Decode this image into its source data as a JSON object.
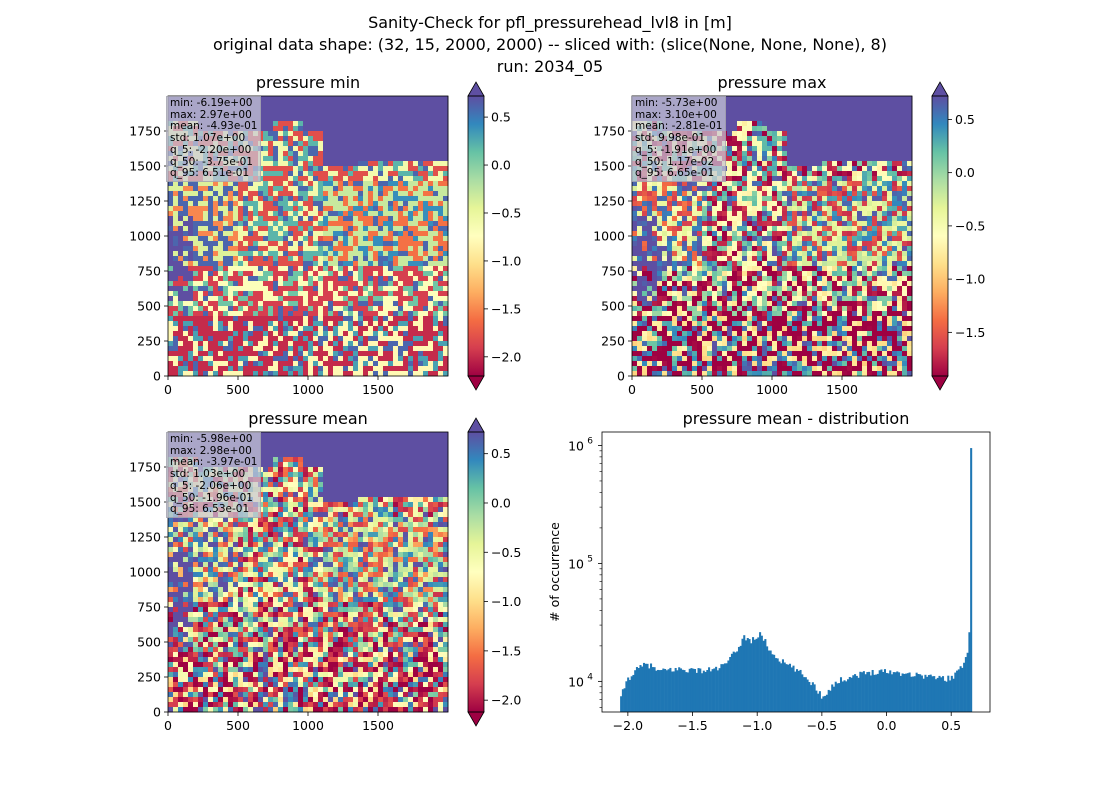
{
  "figure": {
    "title_lines": [
      "Sanity-Check for pfl_pressurehead_lvl8 in [m]",
      "original data shape: (32, 15, 2000, 2000) -- sliced with: (slice(None, None, None), 8)",
      "run: 2034_05"
    ]
  },
  "colors": {
    "colormap": "Spectral",
    "colormap_stops": [
      "#9e0142",
      "#d53e4f",
      "#f46d43",
      "#fdae61",
      "#fee08b",
      "#ffffbf",
      "#e6f598",
      "#abdda4",
      "#66c2a5",
      "#3288bd",
      "#5e4fa2"
    ],
    "histogram_bar": "#1f77b4",
    "stats_box": "#c8c8d7"
  },
  "chart_data": [
    {
      "type": "heatmap",
      "title": "pressure min",
      "xlim": [
        0,
        2000
      ],
      "ylim": [
        0,
        2000
      ],
      "x_ticks": [
        0,
        500,
        1000,
        1500
      ],
      "y_ticks": [
        0,
        250,
        500,
        750,
        1000,
        1250,
        1500,
        1750
      ],
      "colorbar": {
        "vmin": -2.2,
        "vmax": 0.72,
        "ticks": [
          0.5,
          0.0,
          -0.5,
          -1.0,
          -1.5,
          -2.0
        ],
        "tick_labels": [
          "0.5",
          "0.0",
          "−0.5",
          "−1.0",
          "−1.5",
          "−2.0"
        ],
        "extend": "both"
      },
      "stats": [
        "min: -6.19e+00",
        "max: 2.97e+00",
        "mean: -4.93e-01",
        "std: 1.07e+00",
        "q_5: -2.20e+00",
        "q_50: -3.75e-01",
        "q_95: 6.51e-01"
      ]
    },
    {
      "type": "heatmap",
      "title": "pressure max",
      "xlim": [
        0,
        2000
      ],
      "ylim": [
        0,
        2000
      ],
      "x_ticks": [
        0,
        500,
        1000,
        1500
      ],
      "y_ticks": [
        0,
        250,
        500,
        750,
        1000,
        1250,
        1500,
        1750
      ],
      "colorbar": {
        "vmin": -1.91,
        "vmax": 0.72,
        "ticks": [
          0.5,
          0.0,
          -0.5,
          -1.0,
          -1.5
        ],
        "tick_labels": [
          "0.5",
          "0.0",
          "−0.5",
          "−1.0",
          "−1.5"
        ],
        "extend": "both"
      },
      "stats": [
        "min: -5.73e+00",
        "max: 3.10e+00",
        "mean: -2.81e-01",
        "std: 9.98e-01",
        "q_5: -1.91e+00",
        "q_50: 1.17e-02",
        "q_95: 6.65e-01"
      ]
    },
    {
      "type": "heatmap",
      "title": "pressure mean",
      "xlim": [
        0,
        2000
      ],
      "ylim": [
        0,
        2000
      ],
      "x_ticks": [
        0,
        500,
        1000,
        1500
      ],
      "y_ticks": [
        0,
        250,
        500,
        750,
        1000,
        1250,
        1500,
        1750
      ],
      "colorbar": {
        "vmin": -2.12,
        "vmax": 0.72,
        "ticks": [
          0.5,
          0.0,
          -0.5,
          -1.0,
          -1.5,
          -2.0
        ],
        "tick_labels": [
          "0.5",
          "0.0",
          "−0.5",
          "−1.0",
          "−1.5",
          "−2.0"
        ],
        "extend": "both"
      },
      "stats": [
        "min: -5.98e+00",
        "max: 2.98e+00",
        "mean: -3.97e-01",
        "std: 1.03e+00",
        "q_5: -2.06e+00",
        "q_50: -1.96e-01",
        "q_95: 6.53e-01"
      ]
    },
    {
      "type": "bar",
      "title": "pressure mean - distribution",
      "ylabel": "# of occurrence",
      "y_scale": "log",
      "xlim": [
        -2.2,
        0.8
      ],
      "ylim": [
        5500,
        1300000
      ],
      "x_ticks": [
        -2.0,
        -1.5,
        -1.0,
        -0.5,
        0.0,
        0.5
      ],
      "x_tick_labels": [
        "−2.0",
        "−1.5",
        "−1.0",
        "−0.5",
        "0.0",
        "0.5"
      ],
      "y_ticks": [
        10000,
        100000,
        1000000
      ],
      "y_tick_labels": [
        "10",
        "10",
        "10"
      ],
      "y_tick_exponents": [
        "4",
        "5",
        "6"
      ],
      "bin_range": [
        -2.06,
        0.66
      ],
      "bin_count": 200,
      "anchors": [
        [
          -2.06,
          6800
        ],
        [
          -2.03,
          8800
        ],
        [
          -2.0,
          10500
        ],
        [
          -1.95,
          12000
        ],
        [
          -1.9,
          13300
        ],
        [
          -1.85,
          14000
        ],
        [
          -1.8,
          13000
        ],
        [
          -1.75,
          12000
        ],
        [
          -1.7,
          12500
        ],
        [
          -1.6,
          12700
        ],
        [
          -1.5,
          12500
        ],
        [
          -1.4,
          12300
        ],
        [
          -1.3,
          13000
        ],
        [
          -1.25,
          13800
        ],
        [
          -1.2,
          16000
        ],
        [
          -1.15,
          19000
        ],
        [
          -1.1,
          24000
        ],
        [
          -1.05,
          22000
        ],
        [
          -1.0,
          24000
        ],
        [
          -0.97,
          25000
        ],
        [
          -0.93,
          21000
        ],
        [
          -0.9,
          18000
        ],
        [
          -0.85,
          16000
        ],
        [
          -0.8,
          14500
        ],
        [
          -0.75,
          13500
        ],
        [
          -0.7,
          12500
        ],
        [
          -0.65,
          11500
        ],
        [
          -0.6,
          10200
        ],
        [
          -0.55,
          9000
        ],
        [
          -0.52,
          8000
        ],
        [
          -0.5,
          7400
        ],
        [
          -0.47,
          7900
        ],
        [
          -0.42,
          9200
        ],
        [
          -0.35,
          10300
        ],
        [
          -0.25,
          11200
        ],
        [
          -0.15,
          11800
        ],
        [
          -0.05,
          12300
        ],
        [
          0.05,
          12000
        ],
        [
          0.15,
          11700
        ],
        [
          0.25,
          11300
        ],
        [
          0.35,
          11000
        ],
        [
          0.45,
          10500
        ],
        [
          0.5,
          10800
        ],
        [
          0.55,
          12000
        ],
        [
          0.58,
          13000
        ],
        [
          0.6,
          15000
        ],
        [
          0.62,
          17000
        ],
        [
          0.63,
          19500
        ],
        [
          0.64,
          28000
        ],
        [
          0.645,
          40000
        ],
        [
          0.65,
          85000
        ],
        [
          0.655,
          950000
        ],
        [
          0.66,
          950000
        ]
      ]
    }
  ]
}
